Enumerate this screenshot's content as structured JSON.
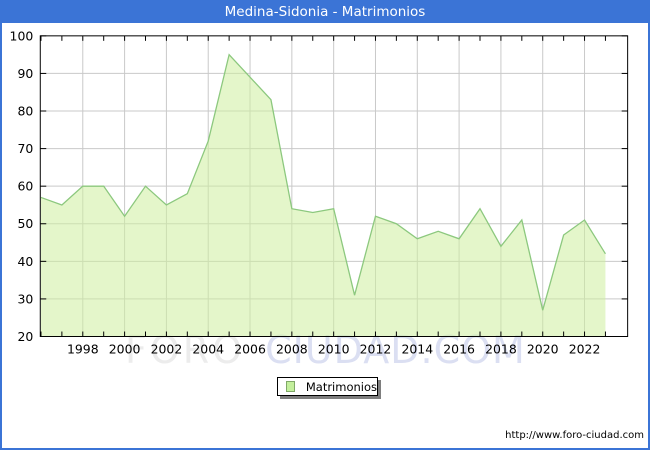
{
  "window": {
    "title": "Medina-Sidonia - Matrimonios"
  },
  "chart_data": {
    "type": "area",
    "title": "Medina-Sidonia - Matrimonios",
    "x": [
      1996,
      1997,
      1998,
      1999,
      2000,
      2001,
      2002,
      2003,
      2004,
      2005,
      2006,
      2007,
      2008,
      2009,
      2010,
      2011,
      2012,
      2013,
      2014,
      2015,
      2016,
      2017,
      2018,
      2019,
      2020,
      2021,
      2022,
      2023
    ],
    "series": [
      {
        "name": "Matrimonios",
        "values": [
          57,
          55,
          60,
          60,
          52,
          60,
          55,
          58,
          72,
          95,
          89,
          83,
          54,
          53,
          54,
          31,
          52,
          50,
          46,
          48,
          46,
          54,
          44,
          51,
          27,
          47,
          51,
          42
        ]
      }
    ],
    "xlabel": "",
    "ylabel": "",
    "ylim": [
      20,
      100
    ],
    "yticks": [
      20,
      30,
      40,
      50,
      60,
      70,
      80,
      90,
      100
    ],
    "xticks": [
      1998,
      2000,
      2002,
      2004,
      2006,
      2008,
      2010,
      2012,
      2014,
      2016,
      2018,
      2020,
      2022
    ],
    "grid": true,
    "legend_position": "bottom-center",
    "colors": {
      "titlebar": "#3b74d6",
      "area_fill": "#cdee9e",
      "area_line": "#8cc87e",
      "gridline": "#c9c9c9",
      "axis": "#000000",
      "legend_swatch": "#c3ef9c"
    }
  },
  "legend": {
    "label": "Matrimonios"
  },
  "watermark": {
    "part1": "FORO",
    "part2": "CIUDAD.COM",
    "color1": "#ececec",
    "color2": "#dbdff2"
  },
  "footer": {
    "url": "http://www.foro-ciudad.com"
  }
}
